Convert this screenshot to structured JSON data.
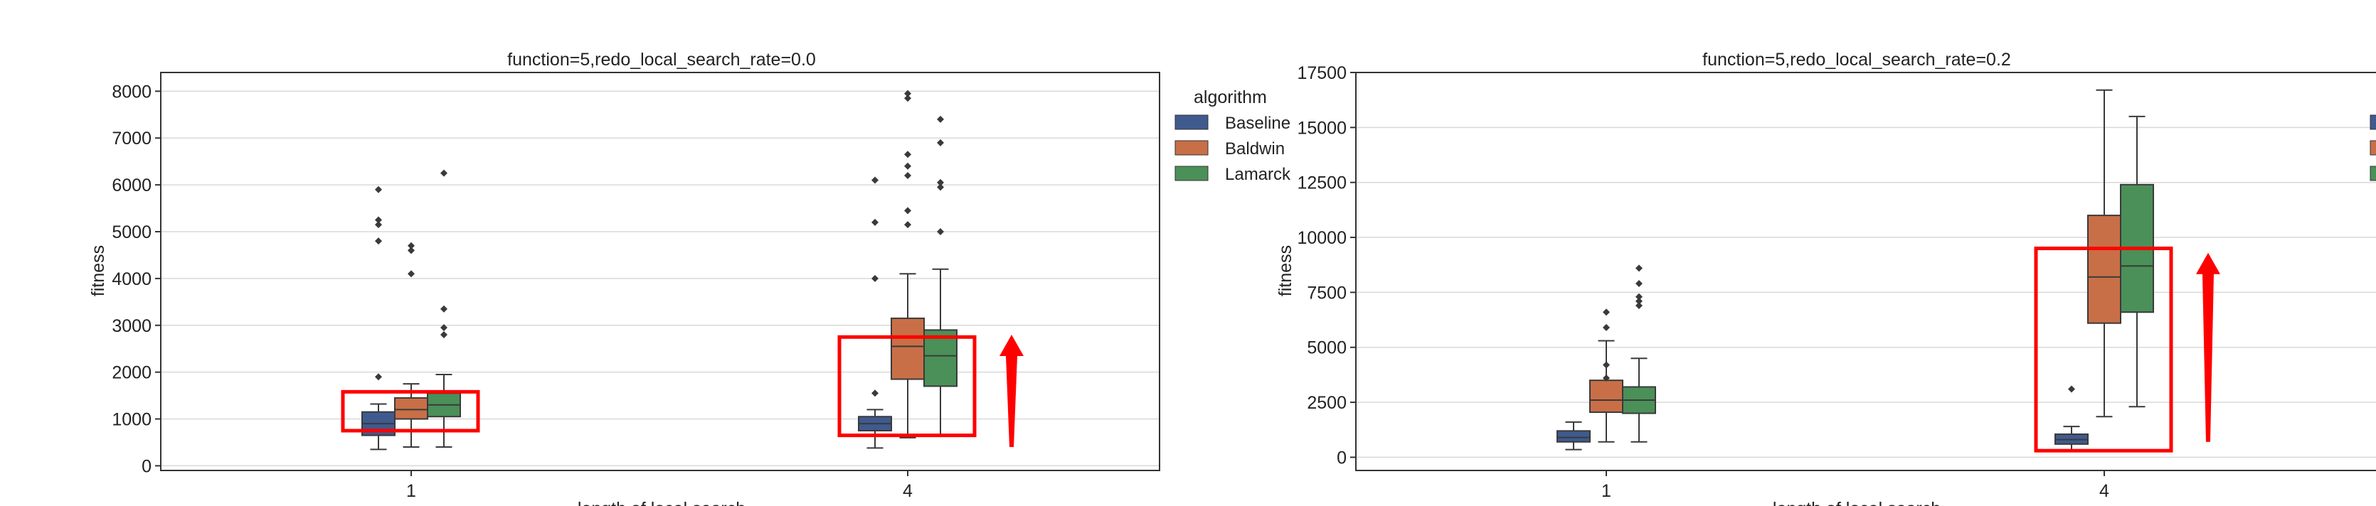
{
  "colors": {
    "Baseline": "#3f5a8f",
    "Baldwin": "#c96f47",
    "Lamarck": "#4a9058",
    "annotation": "#ff0000",
    "grid": "#d9d9d9",
    "axis": "#333333"
  },
  "legend": {
    "title": "algorithm",
    "items": [
      "Baseline",
      "Baldwin",
      "Lamarck"
    ]
  },
  "chart_data": [
    {
      "type": "box",
      "title": "function=5,redo_local_search_rate=0.0",
      "xlabel": "length of local search",
      "ylabel": "fitness",
      "categories": [
        "1",
        "4"
      ],
      "ylim": [
        -100,
        8400
      ],
      "yticks": [
        0,
        1000,
        2000,
        3000,
        4000,
        5000,
        6000,
        7000,
        8000
      ],
      "ytick_labels": [
        "0",
        "1000",
        "2000",
        "3000",
        "4000",
        "5000",
        "6000",
        "7000",
        "8000"
      ],
      "grid": true,
      "legend": "right-outside",
      "series": [
        {
          "name": "Baseline",
          "boxes": [
            {
              "category": "1",
              "whislo": 350,
              "q1": 650,
              "med": 900,
              "q3": 1150,
              "whishi": 1320,
              "fliers": [
                1900,
                4800,
                5150,
                5250,
                5900
              ]
            },
            {
              "category": "4",
              "whislo": 380,
              "q1": 750,
              "med": 900,
              "q3": 1050,
              "whishi": 1200,
              "fliers": [
                1550,
                4000,
                5200,
                6100
              ]
            }
          ]
        },
        {
          "name": "Baldwin",
          "boxes": [
            {
              "category": "1",
              "whislo": 400,
              "q1": 1000,
              "med": 1200,
              "q3": 1450,
              "whishi": 1750,
              "fliers": [
                4100,
                4600,
                4700
              ]
            },
            {
              "category": "4",
              "whislo": 600,
              "q1": 1850,
              "med": 2550,
              "q3": 3150,
              "whishi": 4100,
              "fliers": [
                5150,
                5450,
                6200,
                6400,
                6650,
                7850,
                7950
              ]
            }
          ]
        },
        {
          "name": "Lamarck",
          "boxes": [
            {
              "category": "1",
              "whislo": 400,
              "q1": 1050,
              "med": 1300,
              "q3": 1550,
              "whishi": 1950,
              "fliers": [
                2800,
                2950,
                3350,
                6250
              ]
            },
            {
              "category": "4",
              "whislo": 650,
              "q1": 1700,
              "med": 2350,
              "q3": 2900,
              "whishi": 4200,
              "fliers": [
                5000,
                5950,
                6050,
                6900,
                7400
              ]
            }
          ]
        }
      ],
      "annotations": [
        {
          "type": "box",
          "category": "1",
          "ylo": 750,
          "yhi": 1580
        },
        {
          "type": "box",
          "category": "4",
          "ylo": 650,
          "yhi": 2750
        },
        {
          "type": "arrow",
          "category": "4",
          "ylo": 400,
          "yhi": 2800
        }
      ]
    },
    {
      "type": "box",
      "title": "function=5,redo_local_search_rate=0.2",
      "xlabel": "length of local search",
      "ylabel": "fitness",
      "categories": [
        "1",
        "4"
      ],
      "ylim": [
        -600,
        17500
      ],
      "yticks": [
        0,
        2500,
        5000,
        7500,
        10000,
        12500,
        15000,
        17500
      ],
      "ytick_labels": [
        "0",
        "2500",
        "5000",
        "7500",
        "10000",
        "12500",
        "15000",
        "17500"
      ],
      "grid": true,
      "legend": "right-outside",
      "series": [
        {
          "name": "Baseline",
          "boxes": [
            {
              "category": "1",
              "whislo": 350,
              "q1": 700,
              "med": 900,
              "q3": 1200,
              "whishi": 1600,
              "fliers": []
            },
            {
              "category": "4",
              "whislo": 300,
              "q1": 600,
              "med": 800,
              "q3": 1050,
              "whishi": 1400,
              "fliers": [
                3100
              ]
            }
          ]
        },
        {
          "name": "Baldwin",
          "boxes": [
            {
              "category": "1",
              "whislo": 700,
              "q1": 2050,
              "med": 2600,
              "q3": 3500,
              "whishi": 5300,
              "fliers": [
                3600,
                4200,
                5900,
                6600
              ]
            },
            {
              "category": "4",
              "whislo": 1850,
              "q1": 6100,
              "med": 8200,
              "q3": 11000,
              "whishi": 16700,
              "fliers": []
            }
          ]
        },
        {
          "name": "Lamarck",
          "boxes": [
            {
              "category": "1",
              "whislo": 700,
              "q1": 2000,
              "med": 2600,
              "q3": 3200,
              "whishi": 4500,
              "fliers": [
                6900,
                7100,
                7300,
                7900,
                8600
              ]
            },
            {
              "category": "4",
              "whislo": 2300,
              "q1": 6600,
              "med": 8700,
              "q3": 12400,
              "whishi": 15500,
              "fliers": []
            }
          ]
        }
      ],
      "annotations": [
        {
          "type": "box",
          "category": "4",
          "ylo": 300,
          "yhi": 9500
        },
        {
          "type": "arrow",
          "category": "4",
          "ylo": 700,
          "yhi": 9300
        }
      ]
    }
  ]
}
